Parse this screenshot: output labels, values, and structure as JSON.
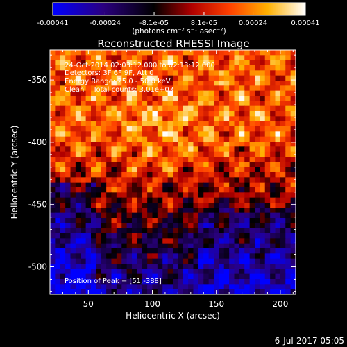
{
  "colorbar": {
    "tick_labels": [
      "-0.00041",
      "-0.00024",
      "-8.1e-05",
      "8.1e-05",
      "0.00024",
      "0.00041"
    ],
    "unit_label": "(photons cm⁻² s⁻¹ asec⁻²)",
    "range": [
      -0.00041,
      0.00041
    ],
    "stops": [
      "#0000ff",
      "#2a0080",
      "#000000",
      "#b00000",
      "#ff4000",
      "#ffb000",
      "#ffffff"
    ]
  },
  "chart_data": {
    "type": "heatmap",
    "title": "Reconstructed RHESSI Image",
    "xlabel": "Heliocentric X (arcsec)",
    "ylabel": "Heliocentric Y (arcsec)",
    "xlim": [
      20,
      212
    ],
    "ylim": [
      -522,
      -326
    ],
    "x_ticks": [
      50,
      100,
      150,
      200
    ],
    "y_ticks": [
      -350,
      -400,
      -450,
      -500
    ],
    "peak": [
      51,
      -388
    ],
    "description": "Mostly orange/yellow positive flux in upper portion, dark/purple/blue negative flux in lower portion with checkered grid pattern"
  },
  "annotations": {
    "time_range": "24-Oct-2014 02:03:12.000 to 02:13:12.000",
    "detectors": "Detectors: 3F 6F 9F, Att 0",
    "energy_range": "Energy Range: 25.0 - 50.0 keV",
    "method": "Clean    Total counts: 3.01e+03",
    "peak_position": "Position of Peak = [51,-388]"
  },
  "footer": {
    "date": "6-Jul-2017 05:05"
  }
}
